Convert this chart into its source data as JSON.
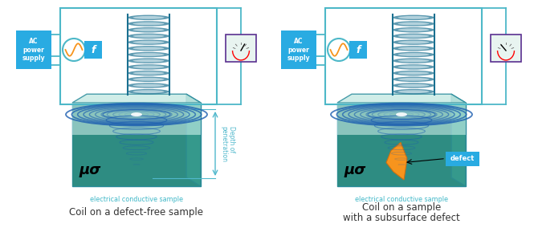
{
  "label_left": "Coil on a defect-free sample",
  "label_right1": "Coil on a sample",
  "label_right2": "with a subsurface defect",
  "elec_label": "electrical conductive sample",
  "mu_sigma": "μσ",
  "depth_label": "Depth of\npenetration",
  "defect_label": "defect",
  "ac_label": "AC\npower\nsupply",
  "f_label": "f",
  "colors": {
    "teal_wire": "#4DB8C8",
    "teal_dark": "#2A8C9C",
    "teal_coil": "#1A7A8A",
    "blue_box": "#29ABE2",
    "orange": "#F7941D",
    "purple": "#5A3090",
    "sample_top": "#A8D8D0",
    "sample_glass": "#C8EAE5",
    "sample_dark": "#2E8C82",
    "sample_mid": "#3EA898",
    "elec_text": "#40B8C8",
    "eddy_blue": "#1A5CB0",
    "eddy_light": "#4A8CD0",
    "background": "#FFFFFF",
    "depth_arrow": "#50B8CC",
    "defect_orange": "#F7941D",
    "defect_box": "#29ABE2",
    "meter_border": "#5A3090",
    "coil_silver": "#C8E0E8",
    "coil_dark": "#1A7090"
  },
  "figsize": [
    6.65,
    2.94
  ],
  "dpi": 100
}
